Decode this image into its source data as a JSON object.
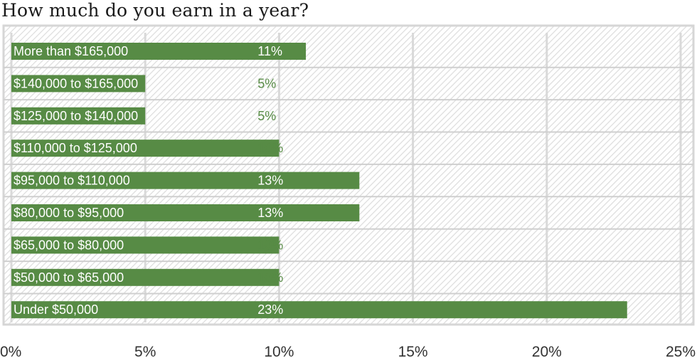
{
  "colors": {
    "bar": "#578b45",
    "value_inside": "#ffffff",
    "value_outside": "#578b45",
    "plot_border": "#d6d6d6",
    "hatch": "#dcdcdc",
    "gridline": "#d9d9d9",
    "separator": "#cfcfcf"
  },
  "chart_data": {
    "type": "bar",
    "orientation": "horizontal",
    "title": "How much do you earn in a year?",
    "xlabel": "",
    "ylabel": "",
    "categories": [
      "More than $165,000",
      "$140,000 to $165,000",
      "$125,000 to $140,000",
      "$110,000 to $125,000",
      "$95,000 to $110,000",
      "$80,000 to $95,000",
      "$65,000 to $80,000",
      "$50,000 to $65,000",
      "Under $50,000"
    ],
    "values": [
      11,
      5,
      5,
      10,
      13,
      13,
      10,
      10,
      23
    ],
    "value_labels": [
      "11%",
      "5%",
      "5%",
      "10%",
      "13%",
      "13%",
      "10%",
      "10%",
      "23%"
    ],
    "xlim": [
      0,
      25
    ],
    "xticks": [
      0,
      5,
      10,
      15,
      20,
      25
    ],
    "xtick_labels": [
      "0%",
      "5%",
      "10%",
      "15%",
      "20%",
      "25%"
    ],
    "grid": true,
    "legend": "none"
  }
}
